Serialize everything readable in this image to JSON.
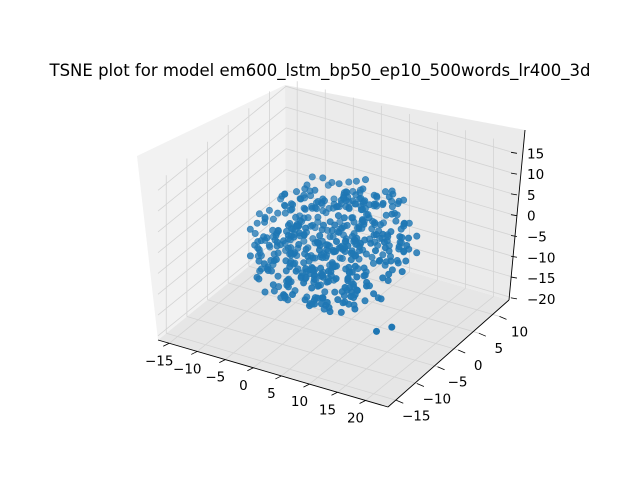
{
  "chart_data": {
    "type": "scatter",
    "projection": "3d",
    "title": "TSNE plot for model em600_lstm_bp50_ep10_500words_lr400_3d",
    "xlabel": "",
    "ylabel": "",
    "zlabel": "",
    "xlim": [
      -17,
      24
    ],
    "ylim": [
      -17,
      14
    ],
    "zlim": [
      -21,
      17
    ],
    "xticks": [
      "−15",
      "−10",
      "−5",
      "0",
      "5",
      "10",
      "15",
      "20"
    ],
    "yticks": [
      "−15",
      "−10",
      "−5",
      "0",
      "5",
      "10"
    ],
    "zticks": [
      "−20",
      "−15",
      "−10",
      "−5",
      "0",
      "5",
      "10",
      "15"
    ],
    "grid": true,
    "legend": "none",
    "point_count": 500,
    "series": [
      {
        "color": "#1f77b4",
        "points_note": "approx. 500 points forming a roughly spherical cloud centred near (3, -2, -2), radius about 13 data units, with a few outliers near (-15, 5, -17) and (19, -13, -8)"
      }
    ]
  }
}
